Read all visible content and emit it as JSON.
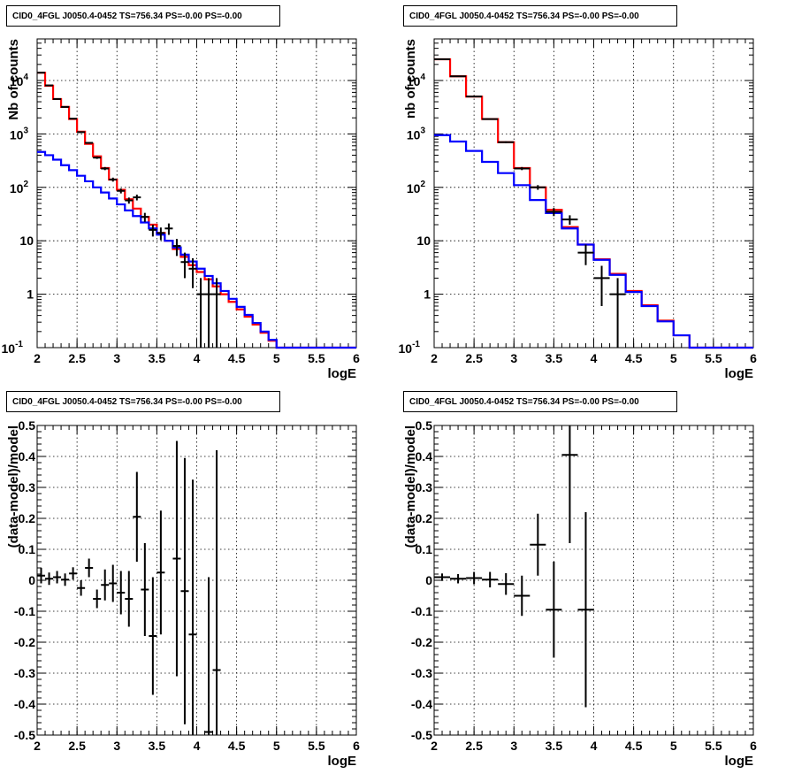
{
  "panels": [
    {
      "title": "CID0_4FGL J0050.4-0452 TS=756.34 PS=-0.00 PS=-0.00"
    },
    {
      "title": "CID0_4FGL J0050.4-0452 TS=756.34 PS=-0.00 PS=-0.00"
    },
    {
      "title": "CID0_4FGL J0050.4-0452 TS=756.34 PS=-0.00 PS=-0.00"
    },
    {
      "title": "CID0_4FGL J0050.4-0452 TS=756.34 PS=-0.00 PS=-0.00"
    }
  ],
  "colors": {
    "red": "#ff0000",
    "blue": "#0000ff",
    "black": "#000000",
    "grid": "#000000"
  },
  "chart_data": [
    {
      "type": "line",
      "title": "CID0_4FGL J0050.4-0452 TS=756.34 PS=-0.00 PS=-0.00",
      "xlabel": "logE",
      "ylabel": "Nb of counts",
      "xlim": [
        2,
        6
      ],
      "ylim": [
        0.1,
        60000
      ],
      "yscale": "log",
      "grid": true,
      "x_ticks": [
        "2",
        "2.5",
        "3",
        "3.5",
        "4",
        "4.5",
        "5",
        "5.5",
        "6"
      ],
      "y_ticks": [
        "10^-1",
        "1",
        "10",
        "10^2",
        "10^3",
        "10^4"
      ],
      "bin_edges": [
        2.0,
        2.1,
        2.2,
        2.3,
        2.4,
        2.5,
        2.6,
        2.7,
        2.8,
        2.9,
        3.0,
        3.1,
        3.2,
        3.3,
        3.4,
        3.5,
        3.6,
        3.7,
        3.8,
        3.9,
        4.0,
        4.1,
        4.2,
        4.3,
        4.4,
        4.5,
        4.6,
        4.7,
        4.8,
        4.9,
        5.0,
        5.1,
        5.2,
        5.3,
        5.4,
        5.5,
        5.6,
        5.7,
        5.8,
        5.9,
        6.0
      ],
      "series": [
        {
          "style": "step",
          "color": "#ff0000",
          "values": [
            14000,
            8000,
            4500,
            3200,
            1900,
            1100,
            650,
            380,
            230,
            140,
            90,
            60,
            40,
            28,
            20,
            14,
            10,
            7,
            5,
            3.5,
            2.6,
            1.9,
            1.4,
            1.0,
            0.72,
            0.52,
            0.38,
            0.27,
            0.19,
            0.135,
            0.1,
            0.1,
            0.1,
            0.1,
            0.1,
            0.1,
            0.1,
            0.1,
            0.1,
            0.1
          ]
        },
        {
          "style": "step",
          "color": "#0000ff",
          "values": [
            460,
            400,
            330,
            260,
            210,
            165,
            130,
            100,
            80,
            62,
            48,
            37,
            29,
            22,
            17,
            13,
            10,
            7.5,
            5.5,
            4.1,
            3.0,
            2.2,
            1.6,
            1.15,
            0.82,
            0.58,
            0.41,
            0.29,
            0.2,
            0.14,
            0.1,
            0.1,
            0.1,
            0.1,
            0.1,
            0.1,
            0.1,
            0.1,
            0.1,
            0.1
          ]
        }
      ],
      "points": [
        {
          "x": 2.05,
          "y": 14000,
          "err": 120
        },
        {
          "x": 2.15,
          "y": 8100,
          "err": 90
        },
        {
          "x": 2.25,
          "y": 4500,
          "err": 67
        },
        {
          "x": 2.35,
          "y": 3200,
          "err": 57
        },
        {
          "x": 2.45,
          "y": 1930,
          "err": 44
        },
        {
          "x": 2.55,
          "y": 1080,
          "err": 33
        },
        {
          "x": 2.65,
          "y": 680,
          "err": 26
        },
        {
          "x": 2.75,
          "y": 360,
          "err": 19
        },
        {
          "x": 2.85,
          "y": 225,
          "err": 15
        },
        {
          "x": 2.95,
          "y": 140,
          "err": 12
        },
        {
          "x": 3.05,
          "y": 86,
          "err": 9
        },
        {
          "x": 3.15,
          "y": 57,
          "err": 7.5
        },
        {
          "x": 3.25,
          "y": 65,
          "err": 8
        },
        {
          "x": 3.35,
          "y": 28,
          "err": 5.3
        },
        {
          "x": 3.45,
          "y": 16,
          "err": 4
        },
        {
          "x": 3.55,
          "y": 14,
          "err": 3.7
        },
        {
          "x": 3.65,
          "y": 17,
          "err": 4.1
        },
        {
          "x": 3.75,
          "y": 8,
          "err": 2.8
        },
        {
          "x": 3.85,
          "y": 4,
          "err": 2
        },
        {
          "x": 3.95,
          "y": 3,
          "err": 1.7
        },
        {
          "x": 4.05,
          "y": 1,
          "err": 1
        },
        {
          "x": 4.15,
          "y": 1,
          "err": 1
        },
        {
          "x": 4.25,
          "y": 1,
          "err": 1
        }
      ]
    },
    {
      "type": "line",
      "title": "CID0_4FGL J0050.4-0452 TS=756.34 PS=-0.00 PS=-0.00",
      "xlabel": "logE",
      "ylabel": "nb of counts",
      "xlim": [
        2,
        6
      ],
      "ylim": [
        0.1,
        60000
      ],
      "yscale": "log",
      "grid": true,
      "x_ticks": [
        "2",
        "2.5",
        "3",
        "3.5",
        "4",
        "4.5",
        "5",
        "5.5",
        "6"
      ],
      "y_ticks": [
        "10^-1",
        "1",
        "10",
        "10^2",
        "10^3",
        "10^4"
      ],
      "bin_edges": [
        2.0,
        2.2,
        2.4,
        2.6,
        2.8,
        3.0,
        3.2,
        3.4,
        3.6,
        3.8,
        4.0,
        4.2,
        4.4,
        4.6,
        4.8,
        5.0,
        5.2,
        5.4,
        5.6,
        5.8,
        6.0
      ],
      "series": [
        {
          "style": "step",
          "color": "#ff0000",
          "values": [
            25000,
            12000,
            5000,
            1900,
            700,
            230,
            100,
            38,
            18,
            8.5,
            4.5,
            2.4,
            1.15,
            0.62,
            0.32,
            0.17,
            0.1,
            0.1,
            0.1,
            0.1
          ]
        },
        {
          "style": "step",
          "color": "#0000ff",
          "values": [
            950,
            720,
            480,
            300,
            185,
            110,
            58,
            33,
            17,
            8.5,
            4.4,
            2.3,
            1.1,
            0.6,
            0.31,
            0.17,
            0.1,
            0.1,
            0.1,
            0.1
          ]
        }
      ],
      "points": [
        {
          "x": 2.1,
          "y": 25000,
          "err": 160
        },
        {
          "x": 2.3,
          "y": 12000,
          "err": 110
        },
        {
          "x": 2.5,
          "y": 5000,
          "err": 70
        },
        {
          "x": 2.7,
          "y": 1900,
          "err": 44
        },
        {
          "x": 2.9,
          "y": 700,
          "err": 26
        },
        {
          "x": 3.1,
          "y": 225,
          "err": 15
        },
        {
          "x": 3.3,
          "y": 100,
          "err": 10
        },
        {
          "x": 3.5,
          "y": 35,
          "err": 6
        },
        {
          "x": 3.7,
          "y": 25,
          "err": 5
        },
        {
          "x": 3.9,
          "y": 6,
          "err": 2.5
        },
        {
          "x": 4.1,
          "y": 2,
          "err": 1.4
        },
        {
          "x": 4.3,
          "y": 1,
          "err": 1
        }
      ]
    },
    {
      "type": "scatter",
      "title": "CID0_4FGL J0050.4-0452 TS=756.34 PS=-0.00 PS=-0.00",
      "xlabel": "logE",
      "ylabel": "(data-model)/model",
      "xlim": [
        2,
        6
      ],
      "ylim": [
        -0.5,
        0.5
      ],
      "grid": true,
      "x_ticks": [
        "2",
        "2.5",
        "3",
        "3.5",
        "4",
        "4.5",
        "5",
        "5.5",
        "6"
      ],
      "y_ticks": [
        "-0.5",
        "-0.4",
        "-0.3",
        "-0.2",
        "-0.1",
        "0",
        "0.1",
        "0.2",
        "0.3",
        "0.4",
        "0.5"
      ],
      "xerr": 0.05,
      "points": [
        {
          "x": 2.05,
          "y": 0.015,
          "err": 0.025
        },
        {
          "x": 2.15,
          "y": 0.005,
          "err": 0.02
        },
        {
          "x": 2.25,
          "y": 0.01,
          "err": 0.02
        },
        {
          "x": 2.35,
          "y": 0.002,
          "err": 0.02
        },
        {
          "x": 2.45,
          "y": 0.022,
          "err": 0.02
        },
        {
          "x": 2.55,
          "y": -0.025,
          "err": 0.025
        },
        {
          "x": 2.65,
          "y": 0.04,
          "err": 0.03
        },
        {
          "x": 2.75,
          "y": -0.06,
          "err": 0.03
        },
        {
          "x": 2.85,
          "y": -0.015,
          "err": 0.05
        },
        {
          "x": 2.95,
          "y": -0.01,
          "err": 0.06
        },
        {
          "x": 3.05,
          "y": -0.04,
          "err": 0.07
        },
        {
          "x": 3.15,
          "y": -0.06,
          "err": 0.09
        },
        {
          "x": 3.25,
          "y": 0.205,
          "err": 0.145
        },
        {
          "x": 3.35,
          "y": -0.03,
          "err": 0.15
        },
        {
          "x": 3.45,
          "y": -0.18,
          "err": 0.19
        },
        {
          "x": 3.55,
          "y": 0.025,
          "err": 0.2
        },
        {
          "x": 3.75,
          "y": 0.07,
          "err": 0.38
        },
        {
          "x": 3.85,
          "y": -0.035,
          "err": 0.43
        },
        {
          "x": 3.95,
          "y": -0.175,
          "err": 0.5
        },
        {
          "x": 4.15,
          "y": -0.49,
          "err": 0.5
        },
        {
          "x": 4.25,
          "y": -0.29,
          "err": 0.71
        }
      ]
    },
    {
      "type": "scatter",
      "title": "CID0_4FGL J0050.4-0452 TS=756.34 PS=-0.00 PS=-0.00",
      "xlabel": "logE",
      "ylabel": "(data-model)/model",
      "xlim": [
        2,
        6
      ],
      "ylim": [
        -0.5,
        0.5
      ],
      "grid": true,
      "x_ticks": [
        "2",
        "2.5",
        "3",
        "3.5",
        "4",
        "4.5",
        "5",
        "5.5",
        "6"
      ],
      "y_ticks": [
        "-0.5",
        "-0.4",
        "-0.3",
        "-0.2",
        "-0.1",
        "0",
        "0.1",
        "0.2",
        "0.3",
        "0.4",
        "0.5"
      ],
      "xerr": 0.1,
      "points": [
        {
          "x": 2.1,
          "y": 0.01,
          "err": 0.012
        },
        {
          "x": 2.3,
          "y": 0.005,
          "err": 0.015
        },
        {
          "x": 2.5,
          "y": 0.007,
          "err": 0.02
        },
        {
          "x": 2.7,
          "y": 0.002,
          "err": 0.025
        },
        {
          "x": 2.9,
          "y": -0.012,
          "err": 0.035
        },
        {
          "x": 3.1,
          "y": -0.05,
          "err": 0.065
        },
        {
          "x": 3.3,
          "y": 0.115,
          "err": 0.1
        },
        {
          "x": 3.5,
          "y": -0.095,
          "err": 0.155
        },
        {
          "x": 3.7,
          "y": 0.405,
          "err": 0.285
        },
        {
          "x": 3.9,
          "y": -0.095,
          "err": 0.315
        }
      ]
    }
  ]
}
